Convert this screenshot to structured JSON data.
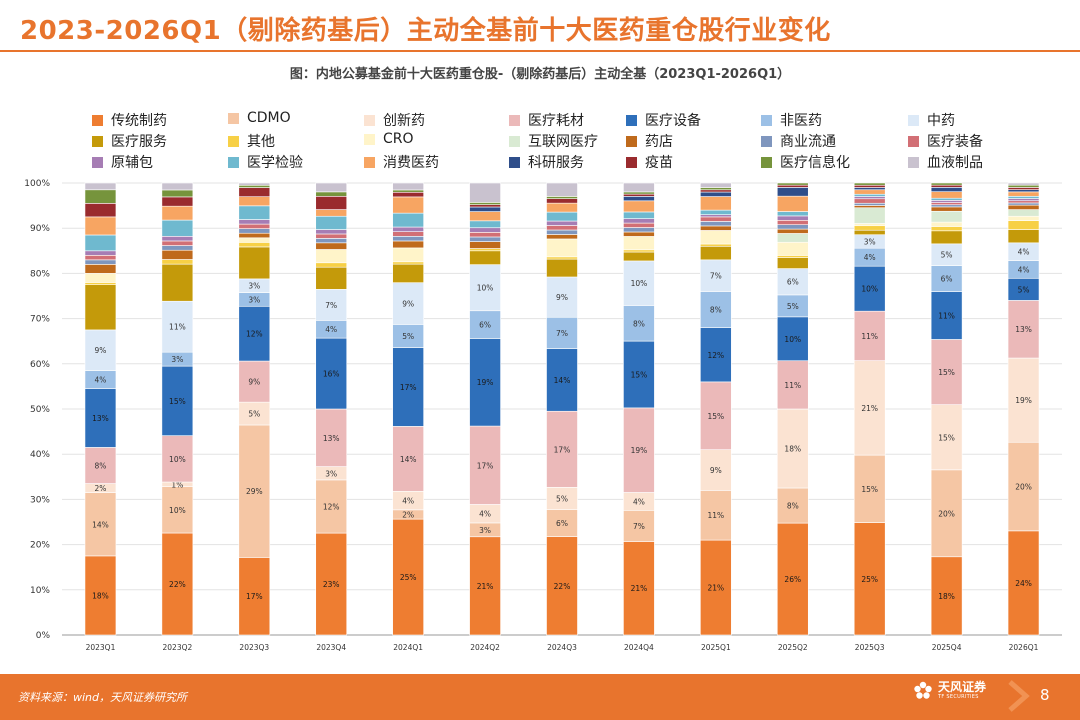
{
  "page": {
    "title": "2023-2026Q1（剔除药基后）主动全基前十大医药重仓股行业变化",
    "source": "资料来源：wind，天风证券研究所",
    "brand_name": "天风证券",
    "brand_sub": "TF SECURITIES",
    "page_number": "8"
  },
  "colors": {
    "accent": "#E8742D",
    "footer": "#E8742D"
  },
  "chart_data": {
    "type": "bar",
    "stacked": true,
    "title": "图：内地公募基金前十大医药重仓股-（剔除药基后）主动全基（2023Q1-2026Q1）",
    "categories": [
      "2023Q1",
      "2023Q2",
      "2023Q3",
      "2023Q4",
      "2024Q1",
      "2024Q2",
      "2024Q3",
      "2024Q4",
      "2025Q1",
      "2025Q2",
      "2025Q3",
      "2025Q4",
      "2026Q1"
    ],
    "ylim": [
      0,
      100
    ],
    "yticks": [
      "0%",
      "10%",
      "20%",
      "30%",
      "40%",
      "50%",
      "60%",
      "70%",
      "80%",
      "90%",
      "100%"
    ],
    "grid": true,
    "legend_position": "top",
    "legend_order": [
      "传统制药",
      "CDMO",
      "创新药",
      "医疗耗材",
      "医疗设备",
      "非医药",
      "中药",
      "医疗服务",
      "其他",
      "CRO",
      "互联网医疗",
      "药店",
      "商业流通",
      "医疗装备",
      "原辅包",
      "医学检验",
      "消费医药",
      "科研服务",
      "疫苗",
      "医疗信息化",
      "血液制品"
    ],
    "series": [
      {
        "name": "传统制药",
        "color": "#EE7D31",
        "labels": true,
        "values": [
          17.5,
          22,
          17,
          23,
          25,
          21.3,
          22,
          21,
          21,
          25.5,
          25,
          18,
          23.5
        ]
      },
      {
        "name": "CDMO",
        "color": "#F5C6A4",
        "labels": true,
        "values": [
          14,
          10,
          29,
          12,
          2,
          3,
          6,
          7,
          11,
          8,
          15,
          20,
          20
        ]
      },
      {
        "name": "创新药",
        "color": "#FBE3D2",
        "labels": true,
        "values": [
          2,
          1,
          5,
          3,
          4,
          4,
          5,
          4,
          9,
          18,
          21,
          15,
          19
        ]
      },
      {
        "name": "医疗耗材",
        "color": "#EBB9B9",
        "labels": true,
        "values": [
          8,
          10,
          9,
          13,
          14,
          17,
          17,
          19,
          15,
          11,
          11,
          15,
          13
        ]
      },
      {
        "name": "医疗设备",
        "color": "#2E6FBA",
        "labels": true,
        "values": [
          13,
          15,
          12,
          16,
          17,
          19,
          14,
          15,
          12,
          10,
          10,
          11,
          5
        ]
      },
      {
        "name": "非医药",
        "color": "#9CC0E6",
        "labels": true,
        "values": [
          4,
          3,
          3,
          4,
          5,
          6,
          7,
          8,
          8,
          5,
          4,
          6,
          4
        ]
      },
      {
        "name": "中药",
        "color": "#DCE9F7",
        "labels": true,
        "values": [
          9,
          11,
          3,
          7,
          9,
          10,
          9,
          10,
          7,
          6,
          3,
          5,
          4
        ]
      },
      {
        "name": "医疗服务",
        "color": "#C49A0A",
        "labels": false,
        "values": [
          10,
          8,
          7,
          5,
          4,
          3,
          4,
          2,
          3,
          2.5,
          1,
          3,
          3
        ]
      },
      {
        "name": "其他",
        "color": "#F7D046",
        "labels": false,
        "values": [
          0.5,
          1,
          1,
          1,
          0.5,
          0.5,
          0.5,
          0.5,
          0.5,
          0.5,
          1,
          1,
          2
        ]
      },
      {
        "name": "CRO",
        "color": "#FFF4C9",
        "labels": false,
        "values": [
          2,
          0,
          1,
          3,
          3,
          0,
          4,
          3,
          3,
          3,
          0.5,
          1,
          1
        ]
      },
      {
        "name": "互联网医疗",
        "color": "#D9EAD3",
        "labels": false,
        "values": [
          0,
          0,
          0,
          0,
          0,
          0,
          0,
          0,
          0,
          2,
          3.5,
          2.5,
          1.5
        ]
      },
      {
        "name": "药店",
        "color": "#BF6A1C",
        "labels": false,
        "values": [
          2,
          2,
          1,
          1.5,
          1.5,
          1.5,
          1,
          1,
          1,
          1,
          0.5,
          1,
          1
        ]
      },
      {
        "name": "商业流通",
        "color": "#7F96BE",
        "labels": false,
        "values": [
          1,
          1,
          1,
          1,
          1,
          1,
          1,
          1,
          1,
          1,
          0.5,
          0.5,
          0.5
        ]
      },
      {
        "name": "医疗装备",
        "color": "#D26F75",
        "labels": false,
        "values": [
          1,
          1,
          1,
          1,
          1,
          1,
          1,
          1,
          1,
          1,
          1,
          0.5,
          0.5
        ]
      },
      {
        "name": "原辅包",
        "color": "#A67DB4",
        "labels": false,
        "values": [
          1,
          1,
          1,
          1,
          1,
          1,
          1,
          1,
          0.5,
          1,
          0.5,
          0.5,
          0.5
        ]
      },
      {
        "name": "医学检验",
        "color": "#6FB9CF",
        "labels": false,
        "values": [
          3.5,
          3.5,
          3,
          3,
          3,
          1.5,
          2,
          1.5,
          1,
          1,
          0.5,
          0.5,
          0.5
        ]
      },
      {
        "name": "消费医药",
        "color": "#F7A562",
        "labels": false,
        "values": [
          4,
          3,
          2,
          1.5,
          3.5,
          2,
          2,
          2.5,
          3,
          3.5,
          1,
          1.5,
          1
        ]
      },
      {
        "name": "科研服务",
        "color": "#2F4E8A",
        "labels": false,
        "values": [
          0,
          0,
          0,
          0,
          0,
          1,
          0,
          1,
          1,
          2,
          0.5,
          1,
          0.5
        ]
      },
      {
        "name": "疫苗",
        "color": "#9A2B2E",
        "labels": false,
        "values": [
          3,
          2,
          2,
          3,
          1,
          0.5,
          1,
          0.5,
          0.5,
          0.5,
          0.5,
          0.5,
          0.5
        ]
      },
      {
        "name": "医疗信息化",
        "color": "#76943C",
        "labels": false,
        "values": [
          3,
          1.5,
          0.5,
          1,
          0.5,
          0.5,
          0.5,
          0.5,
          0.5,
          0.5,
          0.5,
          0.5,
          0.5
        ]
      },
      {
        "name": "血液制品",
        "color": "#C9C2CF",
        "labels": false,
        "values": [
          1.5,
          1.5,
          0.5,
          2,
          1.5,
          4.2,
          3,
          2,
          1,
          0,
          0,
          0,
          0.5
        ]
      }
    ]
  }
}
